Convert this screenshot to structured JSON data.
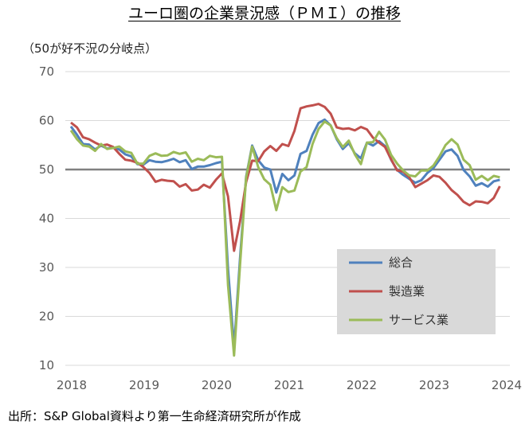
{
  "chart_data": {
    "type": "line",
    "title": "ユーロ圏の企業景況感（ＰＭＩ）の推移",
    "subtitle": "（50が好不況の分岐点）",
    "source": "出所：S&P Global資料より第一生命経済研究所が作成",
    "xlabel": "",
    "ylabel": "",
    "ylim": [
      10,
      70
    ],
    "yticks": [
      "70",
      "60",
      "50",
      "40",
      "30",
      "20",
      "10"
    ],
    "xticks": [
      "2018",
      "2019",
      "2020",
      "2021",
      "2022",
      "2023",
      "2024"
    ],
    "x_start": "2018-01",
    "frequency": "monthly",
    "reference_line": 50,
    "grid": true,
    "legend_position": "bottom-right",
    "series": [
      {
        "name": "総合",
        "color": "#4f81bd",
        "values": [
          58.8,
          57.1,
          55.2,
          55.1,
          54.1,
          54.9,
          54.3,
          54.5,
          54.1,
          53.1,
          52.7,
          51.1,
          51.0,
          51.9,
          51.6,
          51.5,
          51.8,
          52.2,
          51.5,
          51.9,
          50.1,
          50.6,
          50.6,
          50.9,
          51.3,
          51.6,
          29.7,
          13.6,
          31.9,
          48.5,
          54.9,
          51.9,
          50.4,
          50.0,
          45.3,
          49.1,
          47.8,
          48.8,
          53.2,
          53.8,
          57.1,
          59.5,
          60.2,
          59.0,
          56.2,
          54.2,
          55.4,
          53.3,
          52.3,
          55.5,
          54.9,
          55.8,
          54.8,
          52.0,
          49.9,
          48.9,
          48.1,
          47.3,
          47.8,
          49.3,
          50.3,
          52.0,
          53.7,
          54.1,
          52.8,
          49.9,
          48.6,
          46.7,
          47.2,
          46.5,
          47.6,
          47.9
        ]
      },
      {
        "name": "製造業",
        "color": "#c0504d",
        "values": [
          59.6,
          58.6,
          56.6,
          56.2,
          55.5,
          54.9,
          55.1,
          54.6,
          53.2,
          52.0,
          51.8,
          51.4,
          50.5,
          49.3,
          47.5,
          47.9,
          47.7,
          47.6,
          46.5,
          47.0,
          45.7,
          45.9,
          46.9,
          46.3,
          47.9,
          49.2,
          44.5,
          33.4,
          39.4,
          47.4,
          51.8,
          51.7,
          53.7,
          54.8,
          53.8,
          55.2,
          54.8,
          57.9,
          62.5,
          62.9,
          63.1,
          63.4,
          62.8,
          61.4,
          58.6,
          58.3,
          58.4,
          58.0,
          58.7,
          58.2,
          56.5,
          55.5,
          54.6,
          52.1,
          49.8,
          49.6,
          48.4,
          46.4,
          47.1,
          47.8,
          48.8,
          48.5,
          47.3,
          45.8,
          44.8,
          43.4,
          42.7,
          43.5,
          43.4,
          43.1,
          44.2,
          46.6
        ]
      },
      {
        "name": "サービス業",
        "color": "#9bbb59",
        "values": [
          58.0,
          56.2,
          54.9,
          54.7,
          53.8,
          55.2,
          54.2,
          54.4,
          54.7,
          53.7,
          53.4,
          51.2,
          51.2,
          52.8,
          53.3,
          52.8,
          52.9,
          53.6,
          53.2,
          53.5,
          51.6,
          52.2,
          51.9,
          52.8,
          52.5,
          52.6,
          26.4,
          12.0,
          30.5,
          48.3,
          54.7,
          50.5,
          48.0,
          46.9,
          41.7,
          46.4,
          45.4,
          45.7,
          49.6,
          50.5,
          55.2,
          58.3,
          59.8,
          59.0,
          56.4,
          54.6,
          55.9,
          53.1,
          51.1,
          55.5,
          55.6,
          57.7,
          56.1,
          53.0,
          51.2,
          49.8,
          48.8,
          48.6,
          49.8,
          49.8,
          50.8,
          52.7,
          55.0,
          56.2,
          55.1,
          52.0,
          50.9,
          47.9,
          48.7,
          47.8,
          48.7,
          48.4
        ]
      }
    ]
  }
}
